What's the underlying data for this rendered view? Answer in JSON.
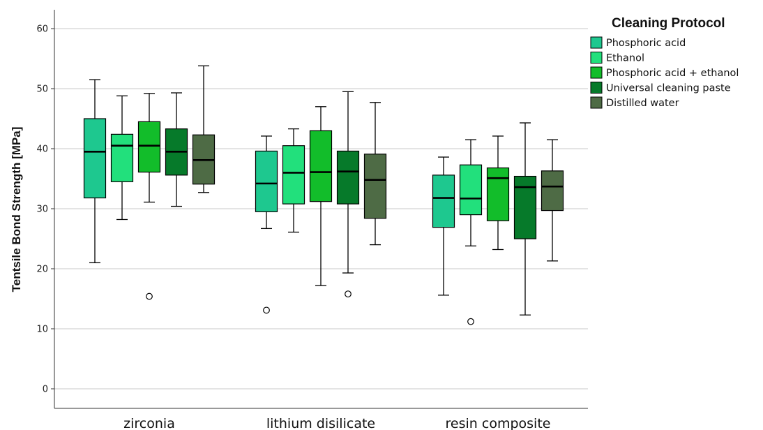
{
  "chart_data": {
    "type": "boxplot",
    "ylabel": "Tentsile Bond Strength [MPa]",
    "xlabel": "",
    "ylim": [
      -3,
      63
    ],
    "yticks": [
      0,
      10,
      20,
      30,
      40,
      50,
      60
    ],
    "grid": "horizontal",
    "legend_position": "right",
    "legend_title": "Cleaning Protocol",
    "categories": [
      "zirconia",
      "lithium disilicate",
      "resin composite"
    ],
    "series": [
      {
        "name": "Phosphoric acid",
        "color": "#1ec88f",
        "boxes": [
          {
            "min": 21.0,
            "q1": 31.8,
            "median": 39.5,
            "q3": 45.0,
            "max": 51.5,
            "outliers": []
          },
          {
            "min": 26.7,
            "q1": 29.5,
            "median": 34.2,
            "q3": 39.6,
            "max": 42.1,
            "outliers": [
              13.1
            ]
          },
          {
            "min": 15.6,
            "q1": 26.9,
            "median": 31.8,
            "q3": 35.6,
            "max": 38.6,
            "outliers": []
          }
        ]
      },
      {
        "name": "Ethanol",
        "color": "#22e07c",
        "boxes": [
          {
            "min": 28.2,
            "q1": 34.5,
            "median": 40.5,
            "q3": 42.4,
            "max": 48.8,
            "outliers": []
          },
          {
            "min": 26.1,
            "q1": 30.8,
            "median": 36.0,
            "q3": 40.5,
            "max": 43.3,
            "outliers": []
          },
          {
            "min": 23.8,
            "q1": 29.0,
            "median": 31.7,
            "q3": 37.3,
            "max": 41.5,
            "outliers": [
              11.2
            ]
          }
        ]
      },
      {
        "name": "Phosphoric acid + ethanol",
        "color": "#12bd2a",
        "boxes": [
          {
            "min": 31.1,
            "q1": 36.1,
            "median": 40.5,
            "q3": 44.5,
            "max": 49.2,
            "outliers": [
              15.4
            ]
          },
          {
            "min": 17.2,
            "q1": 31.2,
            "median": 36.1,
            "q3": 43.0,
            "max": 47.0,
            "outliers": []
          },
          {
            "min": 23.2,
            "q1": 28.0,
            "median": 35.1,
            "q3": 36.8,
            "max": 42.1,
            "outliers": []
          }
        ]
      },
      {
        "name": "Universal cleaning paste",
        "color": "#067a2a",
        "boxes": [
          {
            "min": 30.4,
            "q1": 35.6,
            "median": 39.5,
            "q3": 43.3,
            "max": 49.3,
            "outliers": []
          },
          {
            "min": 19.3,
            "q1": 30.8,
            "median": 36.2,
            "q3": 39.6,
            "max": 49.5,
            "outliers": [
              15.8
            ]
          },
          {
            "min": 12.3,
            "q1": 25.0,
            "median": 33.6,
            "q3": 35.4,
            "max": 44.3,
            "outliers": []
          }
        ]
      },
      {
        "name": "Distilled water",
        "color": "#4e6b45",
        "boxes": [
          {
            "min": 32.7,
            "q1": 34.1,
            "median": 38.1,
            "q3": 42.3,
            "max": 53.8,
            "outliers": []
          },
          {
            "min": 24.0,
            "q1": 28.4,
            "median": 34.8,
            "q3": 39.1,
            "max": 47.7,
            "outliers": []
          },
          {
            "min": 21.3,
            "q1": 29.7,
            "median": 33.7,
            "q3": 36.3,
            "max": 41.5,
            "outliers": []
          }
        ]
      }
    ]
  }
}
